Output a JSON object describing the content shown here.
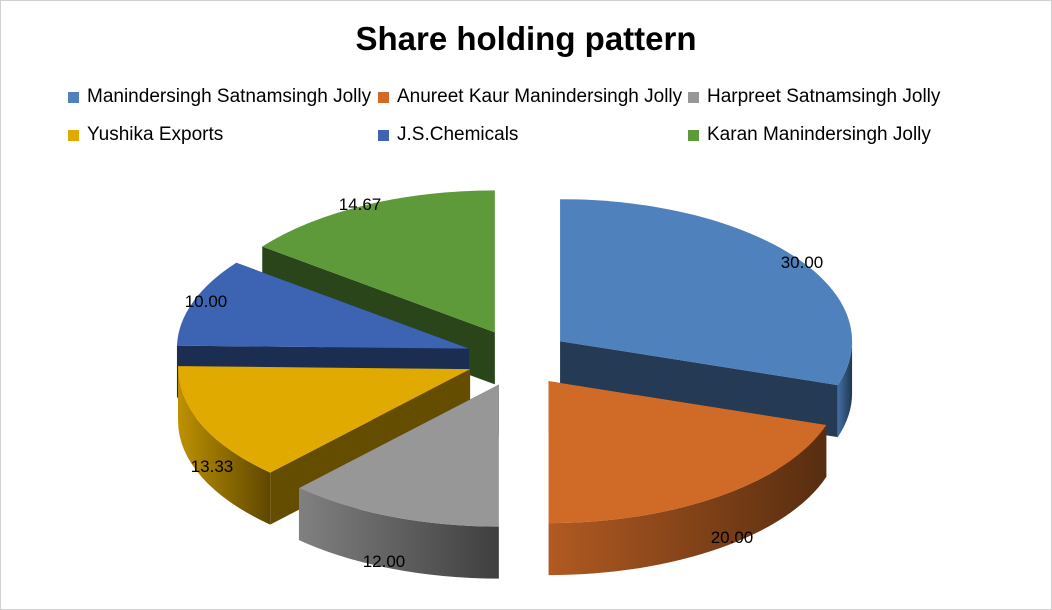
{
  "chart_data": {
    "type": "pie",
    "title": "Share holding pattern",
    "categories": [
      "Manindersingh Satnamsingh Jolly",
      "Anureet Kaur Manindersingh Jolly",
      "Harpreet Satnamsingh Jolly",
      "Yushika Exports",
      "J.S.Chemicals",
      "Karan Manindersingh Jolly"
    ],
    "values": [
      30.0,
      20.0,
      12.0,
      13.33,
      10.0,
      14.67
    ],
    "data_labels": [
      "30.00",
      "20.00",
      "12.00",
      "13.33",
      "10.00",
      "14.67"
    ],
    "colors": [
      "#4f81bd",
      "#d06a27",
      "#979797",
      "#e0aa00",
      "#3d63b3",
      "#5f9a3a"
    ],
    "legend_position": "top",
    "style": "3d-exploded"
  }
}
